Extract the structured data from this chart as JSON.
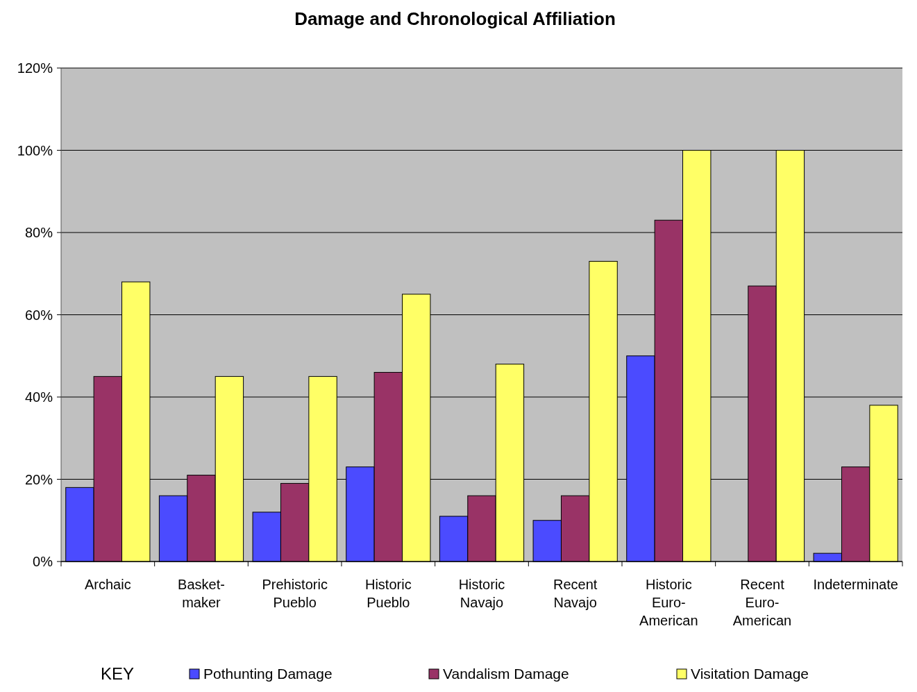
{
  "chart_data": {
    "type": "bar",
    "title": "Damage and Chronological Affiliation",
    "categories": [
      "Archaic",
      "Basket-\nmaker",
      "Prehistoric\nPueblo",
      "Historic\nPueblo",
      "Historic\nNavajo",
      "Recent\nNavajo",
      "Historic\nEuro-\nAmerican",
      "Recent\nEuro-\nAmerican",
      "Indeterminate"
    ],
    "series": [
      {
        "name": "Pothunting Damage",
        "color": "#4b4bff",
        "values": [
          18,
          16,
          12,
          23,
          11,
          10,
          50,
          0,
          2
        ]
      },
      {
        "name": "Vandalism Damage",
        "color": "#993366",
        "values": [
          45,
          21,
          19,
          46,
          16,
          16,
          83,
          67,
          23
        ]
      },
      {
        "name": "Visitation Damage",
        "color": "#ffff66",
        "values": [
          68,
          45,
          45,
          65,
          48,
          73,
          100,
          100,
          38
        ]
      }
    ],
    "ylim": [
      0,
      120
    ],
    "yticks": [
      {
        "value": 0,
        "label": "0%"
      },
      {
        "value": 20,
        "label": "20%"
      },
      {
        "value": 40,
        "label": "40%"
      },
      {
        "value": 60,
        "label": "60%"
      },
      {
        "value": 80,
        "label": "80%"
      },
      {
        "value": 100,
        "label": "100%"
      },
      {
        "value": 120,
        "label": "120%"
      }
    ],
    "grid": "y",
    "legend": "bottom",
    "legend_title": "KEY"
  }
}
